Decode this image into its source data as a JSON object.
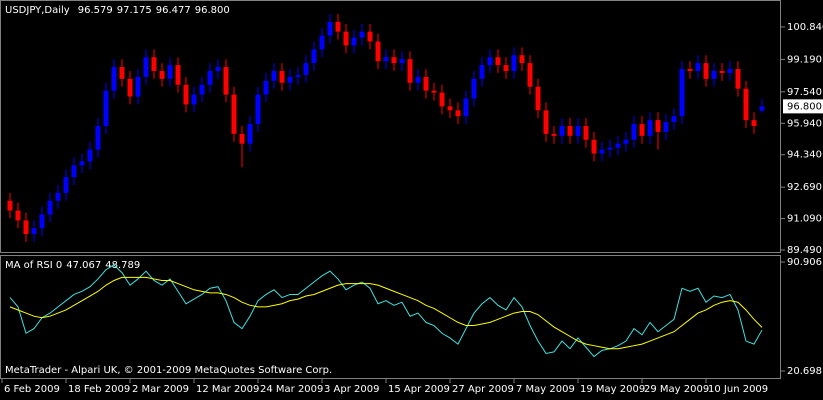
{
  "chart_data": [
    {
      "type": "candlestick",
      "title": "USDJPY,Daily",
      "header_labels": [
        "96.579",
        "97.175",
        "96.477",
        "96.800"
      ],
      "categories": [
        "6 Feb 2009",
        null,
        null,
        null,
        null,
        null,
        null,
        null,
        "18 Feb 2009",
        null,
        null,
        null,
        null,
        null,
        null,
        null,
        "2 Mar 2009",
        null,
        null,
        null,
        null,
        null,
        null,
        null,
        "12 Mar 2009",
        null,
        null,
        null,
        null,
        null,
        null,
        null,
        "24 Mar 2009",
        null,
        null,
        null,
        null,
        null,
        null,
        null,
        "3 Apr 2009",
        null,
        null,
        null,
        null,
        null,
        null,
        null,
        "15 Apr 2009",
        null,
        null,
        null,
        null,
        null,
        null,
        null,
        "27 Apr 2009",
        null,
        null,
        null,
        null,
        null,
        null,
        null,
        "7 May 2009",
        null,
        null,
        null,
        null,
        null,
        null,
        null,
        "19 May 2009",
        null,
        null,
        null,
        null,
        null,
        null,
        null,
        "29 May 2009",
        null,
        null,
        null,
        null,
        null,
        null,
        null,
        "10 Jun 2009",
        null,
        null,
        null,
        null,
        null,
        null
      ],
      "open": [
        92.0,
        91.5,
        91.0,
        90.3,
        90.6,
        91.3,
        92.0,
        92.4,
        93.2,
        93.8,
        94.0,
        94.6,
        95.8,
        97.6,
        98.8,
        98.2,
        97.3,
        98.3,
        99.3,
        98.6,
        98.2,
        98.9,
        97.9,
        96.9,
        97.4,
        97.9,
        98.6,
        98.8,
        97.4,
        95.4,
        94.9,
        95.9,
        97.4,
        98.1,
        98.6,
        98.0,
        98.3,
        98.4,
        99.0,
        99.7,
        100.4,
        101.1,
        100.6,
        99.9,
        100.3,
        100.6,
        100.1,
        99.1,
        99.3,
        99.0,
        99.2,
        98.0,
        98.3,
        97.6,
        97.5,
        96.8,
        96.6,
        96.3,
        97.2,
        98.2,
        98.9,
        99.3,
        98.9,
        98.6,
        99.4,
        99.0,
        97.8,
        96.6,
        95.4,
        95.3,
        95.8,
        95.3,
        95.8,
        95.1,
        94.4,
        94.6,
        94.7,
        94.9,
        95.1,
        95.9,
        95.3,
        96.1,
        95.5,
        96.0,
        96.3,
        98.7,
        98.6,
        99.0,
        98.2,
        98.6,
        98.5,
        98.7,
        97.7,
        96.1,
        96.579
      ],
      "high": [
        92.4,
        91.9,
        91.4,
        91.0,
        91.7,
        92.4,
        92.8,
        93.6,
        94.2,
        94.4,
        95.0,
        96.2,
        98.0,
        99.2,
        99.2,
        98.6,
        98.7,
        99.7,
        99.7,
        99.0,
        99.3,
        99.3,
        98.3,
        97.8,
        98.3,
        99.0,
        99.2,
        99.2,
        97.8,
        95.8,
        96.3,
        97.8,
        98.5,
        99.0,
        99.0,
        98.7,
        98.8,
        99.4,
        100.1,
        100.8,
        101.5,
        101.5,
        101.0,
        100.7,
        101.0,
        101.0,
        100.5,
        99.7,
        99.7,
        99.6,
        99.6,
        98.7,
        98.7,
        98.0,
        97.9,
        97.2,
        97.0,
        97.6,
        98.6,
        99.3,
        99.7,
        99.7,
        99.3,
        99.8,
        99.8,
        99.4,
        98.2,
        97.0,
        95.8,
        96.2,
        96.2,
        96.2,
        96.2,
        95.5,
        95.0,
        95.1,
        95.3,
        95.5,
        96.3,
        96.3,
        96.5,
        96.5,
        96.4,
        96.7,
        99.1,
        99.1,
        99.4,
        99.4,
        99.0,
        99.0,
        99.1,
        99.1,
        98.1,
        96.5,
        97.175
      ],
      "low": [
        91.1,
        90.6,
        89.9,
        89.9,
        90.2,
        90.9,
        91.6,
        92.0,
        92.8,
        93.4,
        93.6,
        94.2,
        95.4,
        97.2,
        97.8,
        96.9,
        96.9,
        97.9,
        98.2,
        97.8,
        97.8,
        97.5,
        96.5,
        96.5,
        97.0,
        97.5,
        98.2,
        97.0,
        95.0,
        93.7,
        94.5,
        95.5,
        97.0,
        97.7,
        97.6,
        97.6,
        97.9,
        98.0,
        98.6,
        99.3,
        100.0,
        100.2,
        99.5,
        99.5,
        99.9,
        99.7,
        98.7,
        98.7,
        98.6,
        98.6,
        97.6,
        97.6,
        97.2,
        97.1,
        96.4,
        96.2,
        95.9,
        95.9,
        96.8,
        97.8,
        98.5,
        98.5,
        98.2,
        98.2,
        98.6,
        97.4,
        96.2,
        95.0,
        94.9,
        94.9,
        94.9,
        94.9,
        94.7,
        94.0,
        94.0,
        94.2,
        94.3,
        94.5,
        94.7,
        94.9,
        94.9,
        94.6,
        95.1,
        95.6,
        95.9,
        98.2,
        98.2,
        97.8,
        97.8,
        98.1,
        98.1,
        97.3,
        95.7,
        95.4,
        96.477
      ],
      "close": [
        91.5,
        91.0,
        90.3,
        90.6,
        91.3,
        92.0,
        92.4,
        93.2,
        93.8,
        94.0,
        94.6,
        95.8,
        97.6,
        98.8,
        98.2,
        97.3,
        98.3,
        99.3,
        98.6,
        98.2,
        98.9,
        97.9,
        96.9,
        97.4,
        97.9,
        98.6,
        98.8,
        97.4,
        95.4,
        94.9,
        95.9,
        97.4,
        98.1,
        98.6,
        98.0,
        98.3,
        98.4,
        99.0,
        99.7,
        100.4,
        101.1,
        100.6,
        99.9,
        100.3,
        100.6,
        100.1,
        99.1,
        99.3,
        99.0,
        99.2,
        98.0,
        98.3,
        97.6,
        97.5,
        96.8,
        96.6,
        96.3,
        97.2,
        98.2,
        98.9,
        99.3,
        98.9,
        98.6,
        99.4,
        99.0,
        97.8,
        96.6,
        95.4,
        95.3,
        95.8,
        95.3,
        95.8,
        95.1,
        94.4,
        94.6,
        94.7,
        94.9,
        95.1,
        95.9,
        95.3,
        96.1,
        95.5,
        96.0,
        96.3,
        98.7,
        98.6,
        99.0,
        98.2,
        98.6,
        98.5,
        98.7,
        97.7,
        96.1,
        95.8,
        96.8
      ],
      "bull_color": "#0000ff",
      "bear_color": "#ff0000",
      "ylim": [
        89.39,
        102.11
      ],
      "yticks": [
        {
          "value": 100.84,
          "label": "100.840"
        },
        {
          "value": 99.19,
          "label": "99.190"
        },
        {
          "value": 97.54,
          "label": "97.540"
        },
        {
          "value": 95.94,
          "label": "95.940"
        },
        {
          "value": 94.34,
          "label": "94.340"
        },
        {
          "value": 92.69,
          "label": "92.690"
        },
        {
          "value": 91.09,
          "label": "91.090"
        },
        {
          "value": 89.49,
          "label": "89.490"
        }
      ]
    },
    {
      "type": "line",
      "title": "MA of RSI 0",
      "series": [
        {
          "color": "#40e0e0",
          "values": [
            68,
            62,
            45,
            48,
            55,
            58,
            62,
            66,
            70,
            72,
            75,
            80,
            86,
            89,
            84,
            76,
            80,
            85,
            79,
            76,
            80,
            72,
            64,
            67,
            70,
            74,
            75,
            66,
            52,
            48,
            56,
            66,
            70,
            73,
            68,
            70,
            70,
            74,
            78,
            82,
            85,
            80,
            73,
            76,
            78,
            74,
            64,
            66,
            63,
            65,
            56,
            58,
            52,
            50,
            45,
            42,
            38,
            48,
            58,
            64,
            68,
            63,
            60,
            68,
            62,
            50,
            40,
            32,
            33,
            40,
            35,
            42,
            36,
            30,
            34,
            35,
            37,
            40,
            48,
            44,
            52,
            46,
            50,
            54,
            74,
            72,
            74,
            65,
            69,
            68,
            70,
            60,
            40,
            38,
            47.067
          ]
        },
        {
          "color": "#ffff00",
          "values": [
            62,
            60,
            58,
            56,
            55,
            56,
            58,
            60,
            63,
            66,
            69,
            72,
            76,
            79,
            81,
            81,
            81,
            81,
            80,
            79,
            79,
            77,
            75,
            73,
            72,
            71,
            71,
            70,
            68,
            65,
            63,
            62,
            62,
            63,
            64,
            66,
            67,
            69,
            70,
            72,
            74,
            76,
            77,
            77,
            77,
            77,
            76,
            74,
            72,
            70,
            68,
            66,
            63,
            61,
            58,
            55,
            52,
            50,
            50,
            51,
            52,
            54,
            56,
            58,
            59,
            59,
            57,
            53,
            49,
            46,
            43,
            40,
            38,
            37,
            36,
            35,
            35,
            36,
            37,
            38,
            40,
            42,
            44,
            46,
            50,
            54,
            58,
            60,
            63,
            65,
            66,
            65,
            60,
            54,
            48.789
          ]
        }
      ],
      "ylim": [
        16.83,
        94.13
      ],
      "yticks": [
        90.906,
        20.698
      ]
    }
  ],
  "footer": "MetaTrader - Alpari UK, © 2001-2009 MetaQuotes Software Corp."
}
